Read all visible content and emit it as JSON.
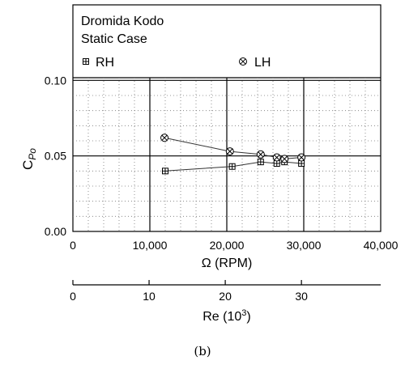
{
  "caption": "(b)",
  "chart_data": {
    "type": "line",
    "annotation_line1": "Dromida Kodo",
    "annotation_line2": "Static Case",
    "xlabel": "Ω (RPM)",
    "ylabel_main": "C",
    "ylabel_sub": "Po",
    "secondary_xlabel_main": "Re (10",
    "secondary_xlabel_sup": "3",
    "secondary_xlabel_end": ")",
    "xlim": [
      0,
      40000
    ],
    "ylim": [
      0,
      0.15
    ],
    "x_ticks": [
      0,
      10000,
      20000,
      30000,
      40000
    ],
    "x_tick_labels": [
      "0",
      "10,000",
      "20,000",
      "30,000",
      "40,000"
    ],
    "y_ticks": [
      0,
      0.05,
      0.1
    ],
    "y_tick_labels": [
      "0.00",
      "0.05",
      "0.10"
    ],
    "secondary_axis_ticks": [
      0,
      10,
      20,
      30
    ],
    "secondary_axis_tick_labels": [
      "0",
      "10",
      "20",
      "30"
    ],
    "grid": true,
    "series": [
      {
        "name": "RH",
        "marker": "boxed-plus",
        "x": [
          12000,
          20700,
          24400,
          26500,
          27500,
          29700
        ],
        "y": [
          0.04,
          0.043,
          0.046,
          0.045,
          0.046,
          0.045
        ]
      },
      {
        "name": "LH",
        "marker": "circled-x",
        "x": [
          11900,
          20400,
          24400,
          26500,
          27500,
          29700
        ],
        "y": [
          0.062,
          0.053,
          0.051,
          0.049,
          0.048,
          0.049
        ]
      }
    ]
  }
}
